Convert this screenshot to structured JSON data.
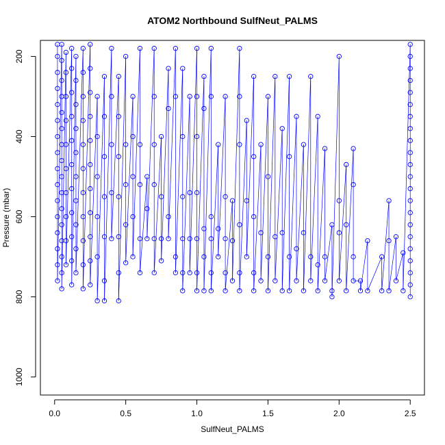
{
  "chart_data": {
    "type": "scatter",
    "title": "ATOM2 Northbound SulfNeut_PALMS",
    "xlabel": "SulfNeut_PALMS",
    "ylabel": "Pressure (mbar)",
    "xlim": [
      -0.1,
      2.6
    ],
    "ylim": [
      1045,
      160
    ],
    "y_reversed": true,
    "x_ticks": [
      "0.0",
      "0.5",
      "1.0",
      "1.5",
      "2.0",
      "2.5"
    ],
    "x_tick_values": [
      0,
      0.5,
      1.0,
      1.5,
      2.0,
      2.5
    ],
    "y_ticks": [
      "200",
      "400",
      "600",
      "800",
      "1000"
    ],
    "y_tick_values": [
      200,
      400,
      600,
      800,
      1000
    ],
    "grid": false,
    "legend": "none",
    "marker": "open-circle",
    "line_color": "#0000ff",
    "series": [
      {
        "x": [
          0.0,
          0.05,
          0.1,
          0.2,
          0.3,
          0.5,
          0.7,
          1.0,
          1.2,
          1.5,
          1.7,
          2.0,
          2.5
        ],
        "y": [
          160,
          250,
          350,
          450,
          550,
          650,
          700,
          720,
          740,
          760,
          780,
          790,
          800
        ]
      }
    ],
    "points": [
      [
        0.02,
        170
      ],
      [
        0.02,
        200
      ],
      [
        0.02,
        240
      ],
      [
        0.02,
        280
      ],
      [
        0.02,
        320
      ],
      [
        0.02,
        360
      ],
      [
        0.02,
        400
      ],
      [
        0.02,
        440
      ],
      [
        0.02,
        480
      ],
      [
        0.02,
        520
      ],
      [
        0.02,
        560
      ],
      [
        0.02,
        600
      ],
      [
        0.02,
        640
      ],
      [
        0.02,
        680
      ],
      [
        0.02,
        720
      ],
      [
        0.02,
        760
      ],
      [
        0.05,
        170
      ],
      [
        0.05,
        210
      ],
      [
        0.05,
        260
      ],
      [
        0.05,
        300
      ],
      [
        0.05,
        340
      ],
      [
        0.05,
        380
      ],
      [
        0.05,
        420
      ],
      [
        0.05,
        460
      ],
      [
        0.05,
        500
      ],
      [
        0.05,
        540
      ],
      [
        0.05,
        580
      ],
      [
        0.05,
        620
      ],
      [
        0.05,
        660
      ],
      [
        0.05,
        700
      ],
      [
        0.05,
        740
      ],
      [
        0.05,
        780
      ],
      [
        0.08,
        190
      ],
      [
        0.08,
        240
      ],
      [
        0.08,
        300
      ],
      [
        0.08,
        360
      ],
      [
        0.08,
        420
      ],
      [
        0.08,
        480
      ],
      [
        0.08,
        540
      ],
      [
        0.08,
        600
      ],
      [
        0.08,
        660
      ],
      [
        0.08,
        720
      ],
      [
        0.12,
        180
      ],
      [
        0.12,
        230
      ],
      [
        0.12,
        290
      ],
      [
        0.12,
        350
      ],
      [
        0.12,
        410
      ],
      [
        0.12,
        470
      ],
      [
        0.12,
        530
      ],
      [
        0.12,
        590
      ],
      [
        0.12,
        650
      ],
      [
        0.12,
        710
      ],
      [
        0.12,
        770
      ],
      [
        0.15,
        200
      ],
      [
        0.15,
        260
      ],
      [
        0.15,
        320
      ],
      [
        0.15,
        380
      ],
      [
        0.15,
        440
      ],
      [
        0.15,
        500
      ],
      [
        0.15,
        560
      ],
      [
        0.15,
        620
      ],
      [
        0.15,
        680
      ],
      [
        0.15,
        740
      ],
      [
        0.2,
        180
      ],
      [
        0.2,
        240
      ],
      [
        0.2,
        300
      ],
      [
        0.2,
        360
      ],
      [
        0.2,
        420
      ],
      [
        0.2,
        480
      ],
      [
        0.2,
        540
      ],
      [
        0.2,
        600
      ],
      [
        0.2,
        660
      ],
      [
        0.2,
        720
      ],
      [
        0.2,
        780
      ],
      [
        0.25,
        170
      ],
      [
        0.25,
        230
      ],
      [
        0.25,
        290
      ],
      [
        0.25,
        350
      ],
      [
        0.25,
        410
      ],
      [
        0.25,
        470
      ],
      [
        0.25,
        530
      ],
      [
        0.25,
        590
      ],
      [
        0.25,
        650
      ],
      [
        0.25,
        710
      ],
      [
        0.25,
        770
      ],
      [
        0.3,
        300
      ],
      [
        0.3,
        400
      ],
      [
        0.3,
        500
      ],
      [
        0.3,
        600
      ],
      [
        0.3,
        700
      ],
      [
        0.3,
        810
      ],
      [
        0.35,
        250
      ],
      [
        0.35,
        350
      ],
      [
        0.35,
        450
      ],
      [
        0.35,
        550
      ],
      [
        0.35,
        650
      ],
      [
        0.35,
        760
      ],
      [
        0.35,
        810
      ],
      [
        0.4,
        180
      ],
      [
        0.4,
        300
      ],
      [
        0.4,
        420
      ],
      [
        0.4,
        540
      ],
      [
        0.4,
        655
      ],
      [
        0.45,
        250
      ],
      [
        0.45,
        350
      ],
      [
        0.45,
        450
      ],
      [
        0.45,
        550
      ],
      [
        0.45,
        650
      ],
      [
        0.45,
        740
      ],
      [
        0.45,
        810
      ],
      [
        0.5,
        200
      ],
      [
        0.5,
        420
      ],
      [
        0.5,
        520
      ],
      [
        0.5,
        620
      ],
      [
        0.5,
        715
      ],
      [
        0.55,
        300
      ],
      [
        0.55,
        400
      ],
      [
        0.55,
        500
      ],
      [
        0.55,
        600
      ],
      [
        0.55,
        700
      ],
      [
        0.6,
        180
      ],
      [
        0.6,
        420
      ],
      [
        0.6,
        520
      ],
      [
        0.6,
        655
      ],
      [
        0.6,
        740
      ],
      [
        0.65,
        500
      ],
      [
        0.65,
        580
      ],
      [
        0.65,
        655
      ],
      [
        0.7,
        180
      ],
      [
        0.7,
        300
      ],
      [
        0.7,
        420
      ],
      [
        0.7,
        520
      ],
      [
        0.7,
        655
      ],
      [
        0.7,
        740
      ],
      [
        0.75,
        400
      ],
      [
        0.75,
        550
      ],
      [
        0.75,
        655
      ],
      [
        0.75,
        710
      ],
      [
        0.8,
        230
      ],
      [
        0.8,
        330
      ],
      [
        0.8,
        600
      ],
      [
        0.8,
        655
      ],
      [
        0.85,
        180
      ],
      [
        0.85,
        300
      ],
      [
        0.85,
        700
      ],
      [
        0.85,
        740
      ],
      [
        0.9,
        230
      ],
      [
        0.9,
        400
      ],
      [
        0.9,
        550
      ],
      [
        0.9,
        655
      ],
      [
        0.9,
        740
      ],
      [
        0.9,
        785
      ],
      [
        0.95,
        300
      ],
      [
        0.95,
        540
      ],
      [
        0.95,
        655
      ],
      [
        0.95,
        740
      ],
      [
        1.0,
        180
      ],
      [
        1.0,
        300
      ],
      [
        1.0,
        400
      ],
      [
        1.0,
        540
      ],
      [
        1.0,
        655
      ],
      [
        1.0,
        740
      ],
      [
        1.0,
        785
      ],
      [
        1.05,
        250
      ],
      [
        1.05,
        330
      ],
      [
        1.05,
        630
      ],
      [
        1.05,
        700
      ],
      [
        1.05,
        785
      ],
      [
        1.1,
        180
      ],
      [
        1.1,
        300
      ],
      [
        1.1,
        600
      ],
      [
        1.1,
        655
      ],
      [
        1.1,
        740
      ],
      [
        1.1,
        785
      ],
      [
        1.15,
        420
      ],
      [
        1.15,
        630
      ],
      [
        1.15,
        700
      ],
      [
        1.2,
        300
      ],
      [
        1.2,
        550
      ],
      [
        1.2,
        655
      ],
      [
        1.2,
        740
      ],
      [
        1.2,
        785
      ],
      [
        1.25,
        560
      ],
      [
        1.25,
        660
      ],
      [
        1.25,
        760
      ],
      [
        1.3,
        180
      ],
      [
        1.3,
        300
      ],
      [
        1.3,
        420
      ],
      [
        1.3,
        620
      ],
      [
        1.3,
        740
      ],
      [
        1.3,
        785
      ],
      [
        1.35,
        360
      ],
      [
        1.35,
        560
      ],
      [
        1.35,
        700
      ],
      [
        1.4,
        250
      ],
      [
        1.4,
        450
      ],
      [
        1.4,
        600
      ],
      [
        1.4,
        740
      ],
      [
        1.4,
        785
      ],
      [
        1.45,
        420
      ],
      [
        1.45,
        640
      ],
      [
        1.45,
        760
      ],
      [
        1.5,
        300
      ],
      [
        1.5,
        500
      ],
      [
        1.5,
        700
      ],
      [
        1.5,
        785
      ],
      [
        1.55,
        250
      ],
      [
        1.55,
        650
      ],
      [
        1.55,
        760
      ],
      [
        1.6,
        380
      ],
      [
        1.6,
        640
      ],
      [
        1.6,
        785
      ],
      [
        1.65,
        250
      ],
      [
        1.65,
        450
      ],
      [
        1.65,
        700
      ],
      [
        1.65,
        785
      ],
      [
        1.7,
        350
      ],
      [
        1.7,
        680
      ],
      [
        1.7,
        760
      ],
      [
        1.75,
        420
      ],
      [
        1.75,
        640
      ],
      [
        1.75,
        785
      ],
      [
        1.8,
        250
      ],
      [
        1.8,
        700
      ],
      [
        1.8,
        760
      ],
      [
        1.85,
        350
      ],
      [
        1.85,
        720
      ],
      [
        1.85,
        785
      ],
      [
        1.9,
        430
      ],
      [
        1.9,
        700
      ],
      [
        1.9,
        760
      ],
      [
        1.95,
        620
      ],
      [
        1.95,
        785
      ],
      [
        1.95,
        800
      ],
      [
        2.0,
        200
      ],
      [
        2.0,
        560
      ],
      [
        2.0,
        640
      ],
      [
        2.0,
        760
      ],
      [
        2.05,
        470
      ],
      [
        2.05,
        620
      ],
      [
        2.05,
        785
      ],
      [
        2.1,
        430
      ],
      [
        2.1,
        520
      ],
      [
        2.1,
        700
      ],
      [
        2.1,
        760
      ],
      [
        2.15,
        760
      ],
      [
        2.15,
        785
      ],
      [
        2.2,
        660
      ],
      [
        2.2,
        785
      ],
      [
        2.3,
        700
      ],
      [
        2.3,
        785
      ],
      [
        2.35,
        560
      ],
      [
        2.35,
        660
      ],
      [
        2.35,
        785
      ],
      [
        2.4,
        650
      ],
      [
        2.4,
        760
      ],
      [
        2.45,
        690
      ],
      [
        2.45,
        785
      ],
      [
        2.5,
        170
      ],
      [
        2.5,
        200
      ],
      [
        2.5,
        230
      ],
      [
        2.5,
        260
      ],
      [
        2.5,
        290
      ],
      [
        2.5,
        320
      ],
      [
        2.5,
        350
      ],
      [
        2.5,
        380
      ],
      [
        2.5,
        410
      ],
      [
        2.5,
        440
      ],
      [
        2.5,
        470
      ],
      [
        2.5,
        500
      ],
      [
        2.5,
        530
      ],
      [
        2.5,
        560
      ],
      [
        2.5,
        590
      ],
      [
        2.5,
        620
      ],
      [
        2.5,
        650
      ],
      [
        2.5,
        680
      ],
      [
        2.5,
        710
      ],
      [
        2.5,
        740
      ],
      [
        2.5,
        770
      ],
      [
        2.5,
        800
      ]
    ]
  }
}
